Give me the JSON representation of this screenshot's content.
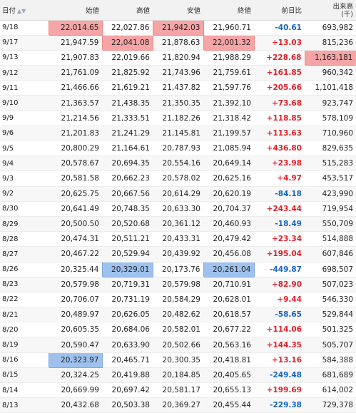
{
  "headers": {
    "date": "日付",
    "open": "始値",
    "high": "高値",
    "low": "安値",
    "close": "終値",
    "change": "前日比",
    "volume_line1": "出来高",
    "volume_line2": "(千)"
  },
  "highlight_colors": {
    "red": "#f6a4a6",
    "blue": "#9ec2ef"
  },
  "rows": [
    {
      "date": "9/18",
      "open": "22,014.65",
      "high": "22,027.86",
      "low": "21,942.03",
      "close": "21,960.71",
      "change": "-40.61",
      "volume": "693,982",
      "hl": {
        "open": "red",
        "low": "red"
      }
    },
    {
      "date": "9/17",
      "open": "21,947.59",
      "high": "22,041.08",
      "low": "21,878.63",
      "close": "22,001.32",
      "change": "+13.03",
      "volume": "815,236",
      "hl": {
        "high": "red",
        "close": "red"
      }
    },
    {
      "date": "9/13",
      "open": "21,907.83",
      "high": "22,019.66",
      "low": "21,820.94",
      "close": "21,988.29",
      "change": "+228.68",
      "volume": "1,163,181",
      "hl": {
        "volume": "red"
      }
    },
    {
      "date": "9/12",
      "open": "21,761.09",
      "high": "21,825.92",
      "low": "21,743.96",
      "close": "21,759.61",
      "change": "+161.85",
      "volume": "960,342",
      "hl": {}
    },
    {
      "date": "9/11",
      "open": "21,466.66",
      "high": "21,619.21",
      "low": "21,437.82",
      "close": "21,597.76",
      "change": "+205.66",
      "volume": "1,101,418",
      "hl": {}
    },
    {
      "date": "9/10",
      "open": "21,363.57",
      "high": "21,438.35",
      "low": "21,350.35",
      "close": "21,392.10",
      "change": "+73.68",
      "volume": "923,747",
      "hl": {}
    },
    {
      "date": "9/9",
      "open": "21,214.56",
      "high": "21,333.51",
      "low": "21,182.26",
      "close": "21,318.42",
      "change": "+118.85",
      "volume": "578,109",
      "hl": {}
    },
    {
      "date": "9/6",
      "open": "21,201.83",
      "high": "21,241.29",
      "low": "21,145.81",
      "close": "21,199.57",
      "change": "+113.63",
      "volume": "710,960",
      "hl": {}
    },
    {
      "date": "9/5",
      "open": "20,800.29",
      "high": "21,164.61",
      "low": "20,787.93",
      "close": "21,085.94",
      "change": "+436.80",
      "volume": "829,635",
      "hl": {}
    },
    {
      "date": "9/4",
      "open": "20,578.67",
      "high": "20,694.35",
      "low": "20,554.16",
      "close": "20,649.14",
      "change": "+23.98",
      "volume": "515,283",
      "hl": {}
    },
    {
      "date": "9/3",
      "open": "20,581.58",
      "high": "20,662.23",
      "low": "20,578.02",
      "close": "20,625.16",
      "change": "+4.97",
      "volume": "453,517",
      "hl": {}
    },
    {
      "date": "9/2",
      "open": "20,625.75",
      "high": "20,667.56",
      "low": "20,614.29",
      "close": "20,620.19",
      "change": "-84.18",
      "volume": "423,990",
      "hl": {}
    },
    {
      "date": "8/30",
      "open": "20,641.49",
      "high": "20,748.35",
      "low": "20,633.30",
      "close": "20,704.37",
      "change": "+243.44",
      "volume": "719,954",
      "hl": {}
    },
    {
      "date": "8/29",
      "open": "20,500.50",
      "high": "20,520.68",
      "low": "20,361.12",
      "close": "20,460.93",
      "change": "-18.49",
      "volume": "550,709",
      "hl": {}
    },
    {
      "date": "8/28",
      "open": "20,474.31",
      "high": "20,511.21",
      "low": "20,433.31",
      "close": "20,479.42",
      "change": "+23.34",
      "volume": "514,888",
      "hl": {}
    },
    {
      "date": "8/27",
      "open": "20,467.22",
      "high": "20,529.94",
      "low": "20,439.92",
      "close": "20,456.08",
      "change": "+195.04",
      "volume": "607,846",
      "hl": {}
    },
    {
      "date": "8/26",
      "open": "20,325.44",
      "high": "20,329.01",
      "low": "20,173.76",
      "close": "20,261.04",
      "change": "-449.87",
      "volume": "698,507",
      "hl": {
        "high": "blue",
        "close": "blue"
      }
    },
    {
      "date": "8/23",
      "open": "20,579.98",
      "high": "20,719.31",
      "low": "20,579.98",
      "close": "20,710.91",
      "change": "+82.90",
      "volume": "507,023",
      "hl": {}
    },
    {
      "date": "8/22",
      "open": "20,706.07",
      "high": "20,731.19",
      "low": "20,584.29",
      "close": "20,628.01",
      "change": "+9.44",
      "volume": "546,330",
      "hl": {}
    },
    {
      "date": "8/21",
      "open": "20,489.97",
      "high": "20,626.05",
      "low": "20,482.62",
      "close": "20,618.57",
      "change": "-58.65",
      "volume": "529,844",
      "hl": {}
    },
    {
      "date": "8/20",
      "open": "20,605.35",
      "high": "20,684.06",
      "low": "20,582.01",
      "close": "20,677.22",
      "change": "+114.06",
      "volume": "501,325",
      "hl": {}
    },
    {
      "date": "8/19",
      "open": "20,590.47",
      "high": "20,633.90",
      "low": "20,502.66",
      "close": "20,563.16",
      "change": "+144.35",
      "volume": "505,707",
      "hl": {}
    },
    {
      "date": "8/16",
      "open": "20,323.97",
      "high": "20,465.71",
      "low": "20,300.35",
      "close": "20,418.81",
      "change": "+13.16",
      "volume": "584,388",
      "hl": {
        "open": "blue"
      }
    },
    {
      "date": "8/15",
      "open": "20,324.25",
      "high": "20,419.88",
      "low": "20,184.85",
      "close": "20,405.65",
      "change": "-249.48",
      "volume": "681,689",
      "hl": {}
    },
    {
      "date": "8/14",
      "open": "20,669.99",
      "high": "20,697.42",
      "low": "20,581.17",
      "close": "20,655.13",
      "change": "+199.69",
      "volume": "614,002",
      "hl": {}
    },
    {
      "date": "8/13",
      "open": "20,432.68",
      "high": "20,503.38",
      "low": "20,369.27",
      "close": "20,455.44",
      "change": "-229.38",
      "volume": "729,378",
      "hl": {}
    }
  ]
}
